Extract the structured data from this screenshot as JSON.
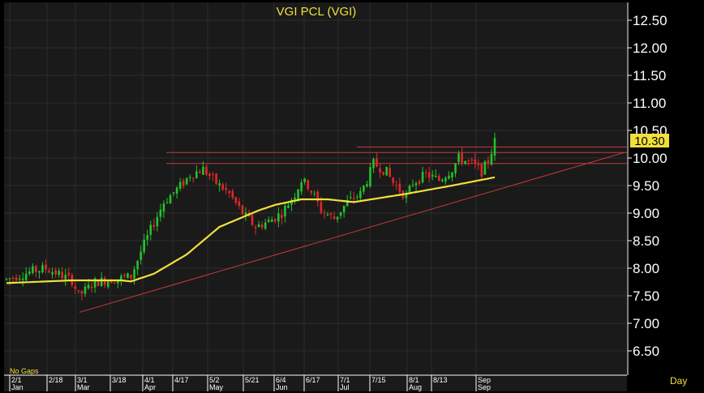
{
  "chart_data": {
    "type": "candlestick",
    "title": "VGI  PCL  (VGI)",
    "period_label": "Day",
    "note": "No  Gaps",
    "ylim": [
      6.0,
      12.9
    ],
    "y_ticks": [
      "12.50",
      "12.00",
      "11.50",
      "11.00",
      "10.50",
      "10.00",
      "9.50",
      "9.00",
      "8.50",
      "8.00",
      "7.50",
      "7.00",
      "6.50"
    ],
    "last_price": "10.30",
    "last_price_marker": "*",
    "date_ticks": [
      "2/1",
      "2/18",
      "3/1",
      "3/18",
      "4/1",
      "4/17",
      "5/2",
      "5/21",
      "6/4",
      "6/17",
      "7/1",
      "7/15",
      "8/1",
      "8/13",
      "Sep"
    ],
    "month_labels": [
      "Jan",
      "Mar",
      "Apr",
      "May",
      "Jun",
      "Jul",
      "Aug",
      "Sep"
    ],
    "num_bars": 150,
    "moving_average_levels": [
      7.73,
      7.78,
      7.78,
      7.78,
      7.76,
      7.9,
      8.25,
      8.75,
      9.25,
      9.25,
      9.35,
      9.45,
      9.65
    ],
    "resistance_levels": [
      10.2,
      10.1,
      9.9
    ],
    "uptrend_line": {
      "start": 7.2,
      "end": 10.1
    },
    "colors": {
      "background": "#1a1a1a",
      "grid": "#2c2c2c",
      "up": "#22c22a",
      "down": "#e02828",
      "moving_average": "#f2e03a",
      "resistance": "#c73a3a",
      "trend": "#c73a3a",
      "price_label_bg": "#f2e03a",
      "price_label_text": "#000000"
    }
  }
}
